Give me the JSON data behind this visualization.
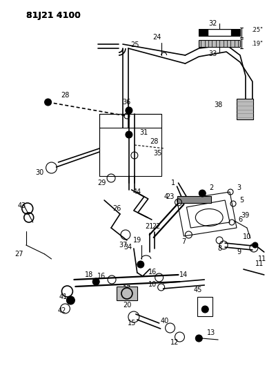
{
  "title": "81J21 4100",
  "background_color": "#ffffff",
  "line_color": "#000000",
  "fig_width": 3.87,
  "fig_height": 5.33,
  "dpi": 100
}
